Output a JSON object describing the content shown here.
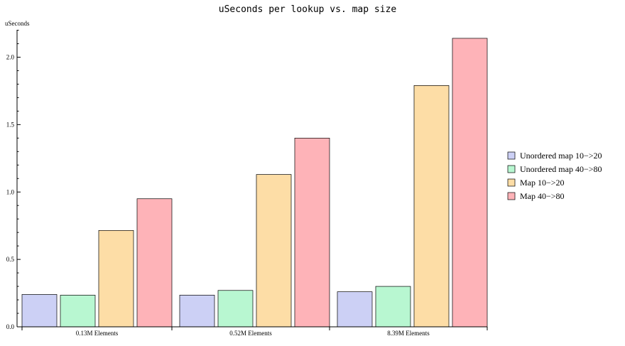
{
  "chart_data": {
    "type": "bar",
    "title": "uSeconds per lookup vs. map size",
    "ylabel": "uSeconds",
    "xlabel": "",
    "ylim": [
      0,
      2.2
    ],
    "yticks": [
      0.0,
      0.5,
      1.0,
      1.5,
      2.0
    ],
    "ytick_labels": [
      "0.0",
      "0.5",
      "1.0",
      "1.5",
      "2.0"
    ],
    "categories": [
      "0.13M Elements",
      "0.52M Elements",
      "8.39M Elements"
    ],
    "series": [
      {
        "name": "Unordered map 10−20",
        "label": "Unordered map 10−>20",
        "color": "#ccd0f5",
        "values": [
          0.24,
          0.235,
          0.26
        ]
      },
      {
        "name": "Unordered map 40−80",
        "label": "Unordered map 40−>80",
        "color": "#b8f7d1",
        "values": [
          0.235,
          0.27,
          0.3
        ]
      },
      {
        "name": "Map 10−20",
        "label": "Map 10−>20",
        "color": "#fddda6",
        "values": [
          0.715,
          1.13,
          1.79
        ]
      },
      {
        "name": "Map 40−80",
        "label": "Map 40−>80",
        "color": "#feb3b8",
        "values": [
          0.95,
          1.4,
          2.14
        ]
      }
    ],
    "legend_position": "right",
    "grid": false
  }
}
